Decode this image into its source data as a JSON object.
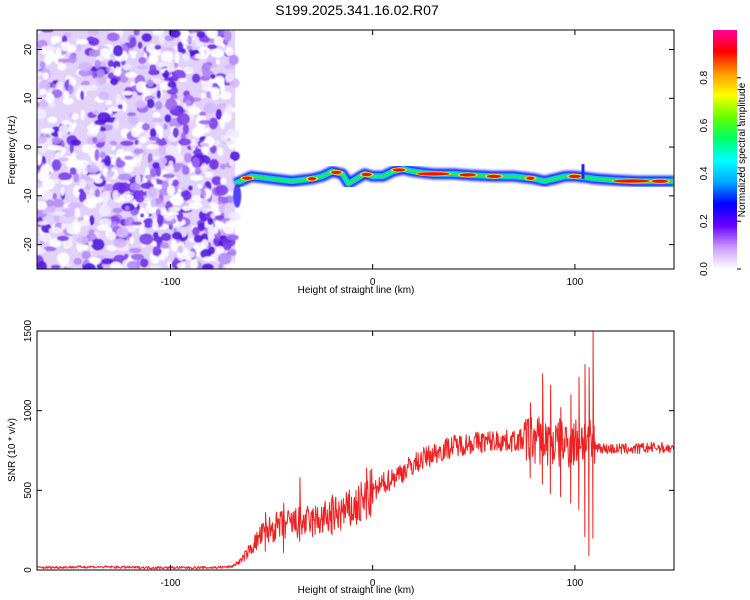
{
  "title": "S199.2025.341.16.02.R07",
  "chart_data": [
    {
      "type": "heatmap",
      "xlabel": "Height of straight line (km)",
      "ylabel": "Frequency (Hz)",
      "xlim": [
        -166,
        149
      ],
      "ylim": [
        -25,
        24
      ],
      "x_ticks": [
        -100,
        0,
        100
      ],
      "y_ticks": [
        -20,
        -10,
        0,
        10,
        20
      ],
      "noise_region_x": [
        -166,
        -68
      ],
      "ridge": {
        "x": [
          -68,
          -60,
          -50,
          -40,
          -30,
          -25,
          -20,
          -15,
          -12,
          -8,
          -4,
          0,
          5,
          10,
          15,
          20,
          30,
          40,
          50,
          60,
          70,
          80,
          85,
          90,
          95,
          100,
          105,
          110,
          120,
          130,
          140,
          149
        ],
        "y": [
          -7.5,
          -6.0,
          -6.5,
          -7.0,
          -6.5,
          -6.0,
          -5.0,
          -5.5,
          -7.5,
          -6.5,
          -5.5,
          -6.0,
          -6.0,
          -5.0,
          -4.5,
          -5.0,
          -5.5,
          -5.5,
          -5.8,
          -6.0,
          -6.0,
          -6.5,
          -7.0,
          -6.5,
          -6.0,
          -6.0,
          -6.2,
          -6.5,
          -6.8,
          -7.0,
          -7.0,
          -7.0
        ]
      },
      "colorbar": {
        "label": "Normalized spectral amplitude",
        "range": [
          0,
          1
        ],
        "ticks": [
          "0.0",
          "0.2",
          "0.4",
          "0.6",
          "0.8"
        ],
        "colors": [
          "#ffffff",
          "#cc99ff",
          "#6600ff",
          "#0000ff",
          "#00aaff",
          "#00ffff",
          "#00ff66",
          "#66ff00",
          "#ffff00",
          "#ff9900",
          "#ff0000",
          "#ff0099"
        ]
      }
    },
    {
      "type": "line",
      "xlabel": "Height of straight line (km)",
      "ylabel": "SNR (10 * v/v)",
      "xlim": [
        -166,
        149
      ],
      "ylim": [
        0,
        1500
      ],
      "x_ticks": [
        -100,
        0,
        100
      ],
      "y_ticks": [
        0,
        500,
        1000,
        1500
      ],
      "color": "#ee2222",
      "series": {
        "x": [
          -166,
          -140,
          -110,
          -80,
          -70,
          -65,
          -60,
          -55,
          -50,
          -45,
          -40,
          -35,
          -30,
          -25,
          -20,
          -15,
          -10,
          -5,
          0,
          5,
          10,
          15,
          20,
          25,
          30,
          40,
          50,
          60,
          70,
          80,
          90,
          100,
          105,
          108,
          110,
          115,
          120,
          130,
          140,
          149
        ],
        "y": [
          15,
          20,
          15,
          15,
          20,
          60,
          140,
          220,
          260,
          280,
          290,
          300,
          300,
          320,
          340,
          360,
          380,
          420,
          480,
          540,
          580,
          620,
          660,
          700,
          730,
          780,
          800,
          810,
          810,
          820,
          790,
          800,
          830,
          770,
          780,
          760,
          760,
          760,
          770,
          760
        ]
      },
      "spikes": [
        {
          "x": -53,
          "lo": 120,
          "hi": 360
        },
        {
          "x": -44,
          "lo": 110,
          "hi": 420
        },
        {
          "x": -36,
          "lo": 180,
          "hi": 580
        },
        {
          "x": -20,
          "lo": 220,
          "hi": 470
        },
        {
          "x": -3,
          "lo": 320,
          "hi": 640
        },
        {
          "x": 78,
          "lo": 580,
          "hi": 1050
        },
        {
          "x": 84,
          "lo": 540,
          "hi": 1230
        },
        {
          "x": 88,
          "lo": 480,
          "hi": 1160
        },
        {
          "x": 93,
          "lo": 460,
          "hi": 1020
        },
        {
          "x": 98,
          "lo": 420,
          "hi": 1100
        },
        {
          "x": 102,
          "lo": 380,
          "hi": 1210
        },
        {
          "x": 105,
          "lo": 210,
          "hi": 1290
        },
        {
          "x": 107,
          "lo": 90,
          "hi": 1270
        },
        {
          "x": 109,
          "lo": 200,
          "hi": 1500
        }
      ]
    }
  ]
}
